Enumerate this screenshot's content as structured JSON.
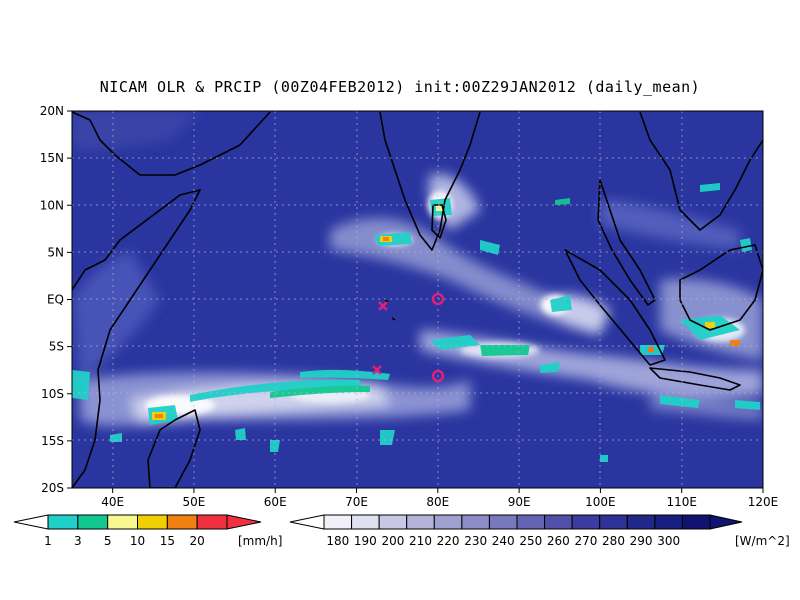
{
  "title": "NICAM OLR & PRCIP (00Z04FEB2012) init:00Z29JAN2012 (daily_mean)",
  "map": {
    "lon_range": [
      35,
      120
    ],
    "lat_range": [
      -20,
      20
    ],
    "lat_ticks": [
      {
        "v": 20,
        "label": "20N"
      },
      {
        "v": 15,
        "label": "15N"
      },
      {
        "v": 10,
        "label": "10N"
      },
      {
        "v": 5,
        "label": "5N"
      },
      {
        "v": 0,
        "label": "EQ"
      },
      {
        "v": -5,
        "label": "5S"
      },
      {
        "v": -10,
        "label": "10S"
      },
      {
        "v": -15,
        "label": "15S"
      },
      {
        "v": -20,
        "label": "20S"
      }
    ],
    "lon_ticks": [
      {
        "v": 40,
        "label": "40E"
      },
      {
        "v": 50,
        "label": "50E"
      },
      {
        "v": 60,
        "label": "60E"
      },
      {
        "v": 70,
        "label": "70E"
      },
      {
        "v": 80,
        "label": "80E"
      },
      {
        "v": 90,
        "label": "90E"
      },
      {
        "v": 100,
        "label": "100E"
      },
      {
        "v": 110,
        "label": "110E"
      },
      {
        "v": 120,
        "label": "120E"
      }
    ],
    "ocean_color": "#2a35a0",
    "gridlines": "dotted"
  },
  "markers": [
    {
      "type": "x",
      "lon": 73,
      "lat": -1,
      "color": "#e0207a"
    },
    {
      "type": "x",
      "lon": 72,
      "lat": -7.5,
      "color": "#e0207a"
    },
    {
      "type": "circle",
      "lon": 80,
      "lat": 0,
      "color": "#e0207a"
    },
    {
      "type": "circle",
      "lon": 80,
      "lat": -8,
      "color": "#e0207a"
    }
  ],
  "precip_legend": {
    "levels": [
      "1",
      "3",
      "5",
      "10",
      "15",
      "20"
    ],
    "unit": "[mm/h]",
    "colors": [
      "#20d0c8",
      "#10c890",
      "#f8f890",
      "#f0d000",
      "#f08010",
      "#f03040"
    ]
  },
  "olr_legend": {
    "levels": [
      "180",
      "190",
      "200",
      "210",
      "220",
      "230",
      "240",
      "250",
      "260",
      "270",
      "280",
      "290",
      "300"
    ],
    "unit": "[W/m^2]",
    "colors": [
      "#f0f0f8",
      "#e0e0f0",
      "#c8c8e4",
      "#b4b4da",
      "#a0a0d0",
      "#8c8cc6",
      "#7878bc",
      "#6464b2",
      "#5050a8",
      "#3c3ca0",
      "#2e3296",
      "#22288a",
      "#181e80",
      "#101470"
    ]
  }
}
